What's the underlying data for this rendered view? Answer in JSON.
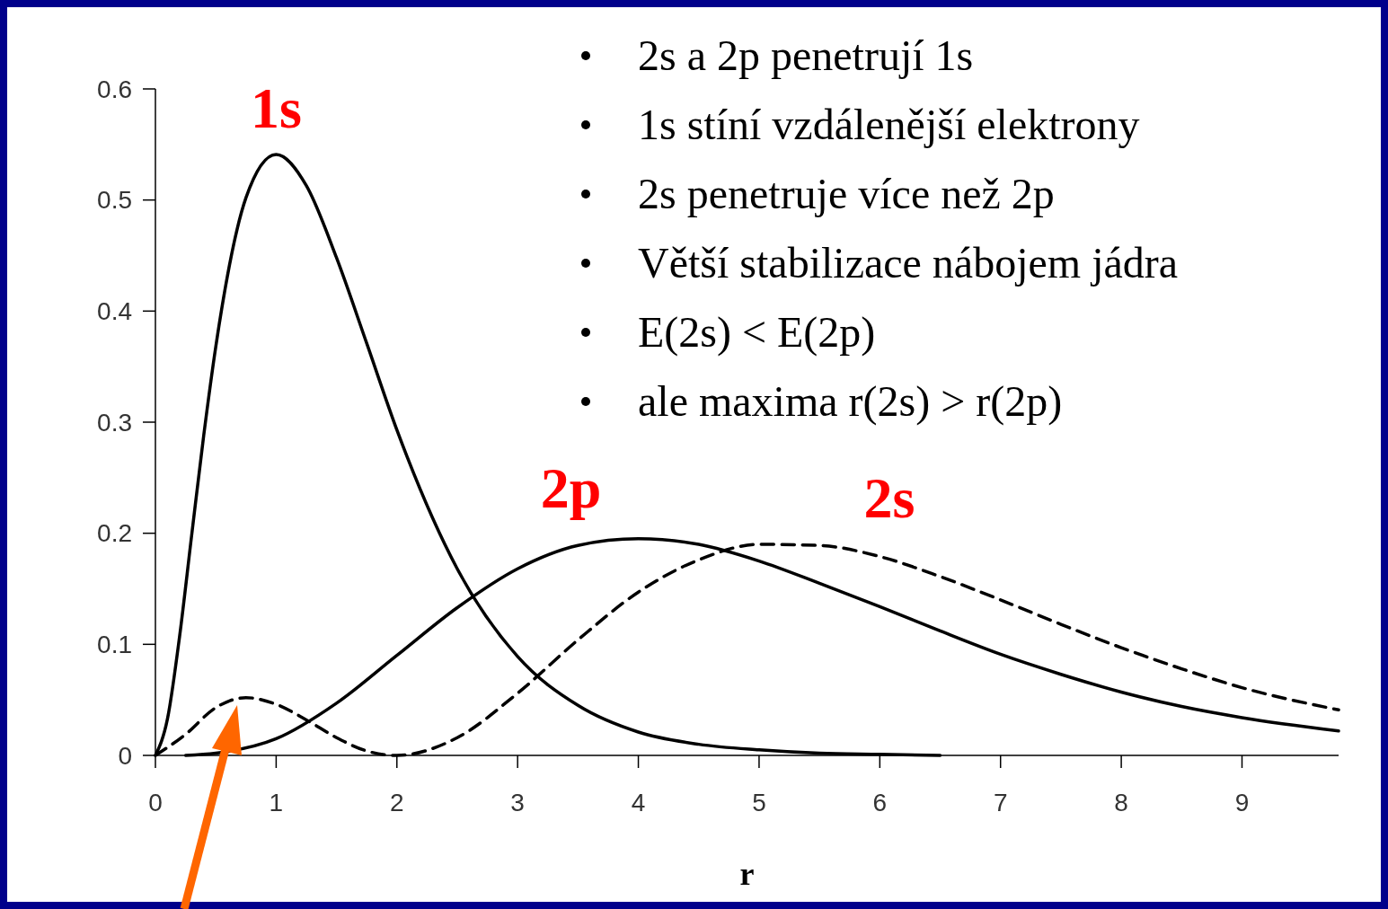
{
  "chart_data": {
    "type": "line",
    "xlabel": "r",
    "xlim": [
      0,
      9.8
    ],
    "ylim": [
      0,
      0.6
    ],
    "xticks": [
      0,
      1,
      2,
      3,
      4,
      5,
      6,
      7,
      8,
      9
    ],
    "yticks": [
      0,
      0.1,
      0.2,
      0.3,
      0.4,
      0.5,
      0.6
    ],
    "grid": false,
    "marker": "none",
    "annotations": [
      "2s a 2p penetrují 1s",
      "1s stíní vzdálenější elektrony",
      "2s penetruje více než 2p",
      "Větší stabilizace nábojem jádra",
      "E(2s) < E(2p)",
      "ale maxima r(2s) > r(2p)"
    ],
    "series": [
      {
        "name": "1s",
        "color": "#000000",
        "line_style": "solid",
        "x": [
          0,
          0.1,
          0.2,
          0.3,
          0.4,
          0.5,
          0.75,
          1,
          1.25,
          1.5,
          1.75,
          2,
          2.5,
          3,
          3.5,
          4,
          4.5,
          5,
          5.5,
          6,
          6.5
        ],
        "values": [
          0,
          0.033,
          0.107,
          0.198,
          0.288,
          0.368,
          0.502,
          0.541,
          0.513,
          0.448,
          0.371,
          0.293,
          0.168,
          0.089,
          0.045,
          0.021,
          0.01,
          0.005,
          0.002,
          0.001,
          0
        ]
      },
      {
        "name": "2p",
        "color": "#000000",
        "line_style": "solid",
        "x": [
          0.25,
          0.5,
          1,
          1.5,
          2,
          2.5,
          3,
          3.5,
          4,
          4.5,
          5,
          5.5,
          6,
          6.5,
          7,
          7.5,
          8,
          8.5,
          9,
          9.8
        ],
        "values": [
          0,
          0.002,
          0.015,
          0.047,
          0.09,
          0.133,
          0.168,
          0.189,
          0.195,
          0.19,
          0.175,
          0.155,
          0.134,
          0.112,
          0.091,
          0.073,
          0.057,
          0.044,
          0.034,
          0.022
        ]
      },
      {
        "name": "2s",
        "color": "#000000",
        "line_style": "dashed",
        "x": [
          0,
          0.25,
          0.5,
          0.75,
          1,
          1.25,
          1.5,
          1.75,
          2,
          2.5,
          3,
          3.5,
          4,
          4.5,
          5,
          5.5,
          6,
          6.5,
          7,
          7.5,
          8,
          8.5,
          9,
          9.8
        ],
        "values": [
          0,
          0.019,
          0.043,
          0.052,
          0.046,
          0.032,
          0.016,
          0.004,
          0,
          0.016,
          0.056,
          0.104,
          0.147,
          0.176,
          0.19,
          0.189,
          0.179,
          0.161,
          0.14,
          0.118,
          0.097,
          0.078,
          0.061,
          0.041
        ]
      }
    ]
  }
}
